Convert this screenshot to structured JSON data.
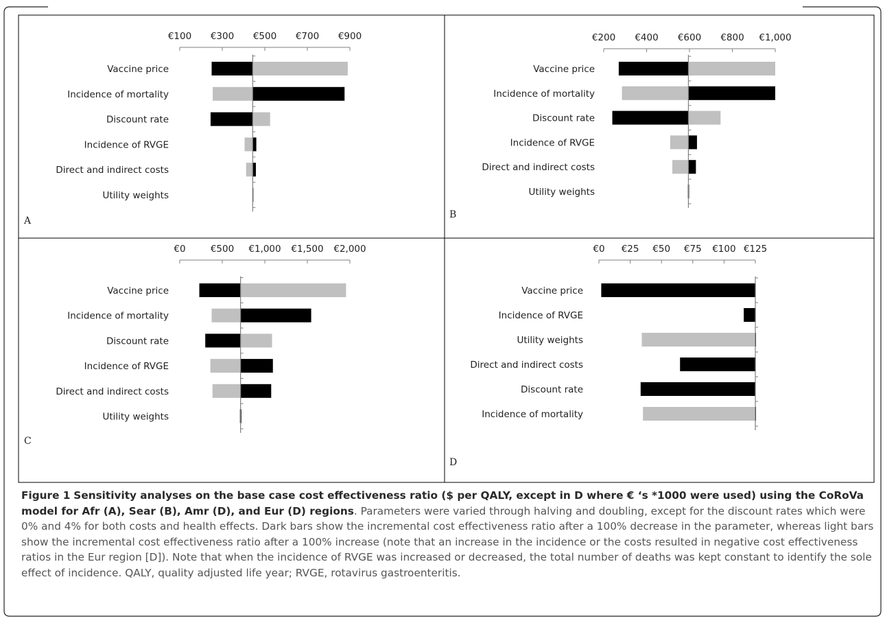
{
  "figure": {
    "caption": {
      "label": "Figure 1",
      "title": "Sensitivity analyses on the base case cost effectiveness ratio ($ per QALY, except in D where € ‘s *1000 were used) using the CoRoVa model for Afr (A), Sear (B), Amr (D), and Eur (D) regions",
      "body": ". Parameters were varied through halving and doubling, except for the discount rates which were 0% and 4% for both costs and health effects. Dark bars show the incremental cost effectiveness ratio after a 100% decrease in the parameter, whereas light bars show the incremental cost effectiveness ratio after a 100% increase (note that an increase in the incidence or the costs resulted in negative cost effectiveness ratios in the Eur region [D]). Note that when the incidence of RVGE was increased or decreased, the total number of deaths was kept constant to identify the sole effect of incidence. QALY, quality adjusted life year; RVGE, rotavirus gastroenteritis."
    },
    "colors": {
      "dark": "#000000",
      "light": "#c0c0c0",
      "axis": "#7f7f7f",
      "border": "#000000"
    }
  },
  "chart_data": [
    {
      "panel": "A",
      "type": "bar",
      "orientation": "horizontal",
      "tick_labels": [
        "€100",
        "€300",
        "€500",
        "€700",
        "€900"
      ],
      "xlim": [
        100,
        900
      ],
      "base": 443,
      "categories": [
        "Vaccine price",
        "Incidence of mortality",
        "Discount rate",
        "Incidence of RVGE",
        "Direct and indirect costs",
        "Utility weights"
      ],
      "series": [
        {
          "key": "dark",
          "values": [
            250,
            875,
            245,
            460,
            458,
            443
          ]
        },
        {
          "key": "light",
          "values": [
            890,
            255,
            525,
            405,
            412,
            441
          ]
        }
      ]
    },
    {
      "panel": "B",
      "type": "bar",
      "orientation": "horizontal",
      "tick_labels": [
        "€200",
        "€400",
        "€600",
        "€800",
        "€1,000"
      ],
      "xlim": [
        200,
        1000
      ],
      "base": 595,
      "categories": [
        "Vaccine price",
        "Incidence of mortality",
        "Discount rate",
        "Incidence of RVGE",
        "Direct and indirect costs",
        "Utility weights"
      ],
      "series": [
        {
          "key": "dark",
          "values": [
            270,
            1000,
            240,
            635,
            630,
            598
          ]
        },
        {
          "key": "light",
          "values": [
            1000,
            285,
            745,
            510,
            520,
            590
          ]
        }
      ]
    },
    {
      "panel": "C",
      "type": "bar",
      "orientation": "horizontal",
      "tick_labels": [
        "€0",
        "€500",
        "€1,000",
        "€1,500",
        "€2,000"
      ],
      "xlim": [
        0,
        2000
      ],
      "base": 715,
      "categories": [
        "Vaccine price",
        "Incidence of mortality",
        "Discount rate",
        "Incidence of RVGE",
        "Direct and indirect costs",
        "Utility weights"
      ],
      "series": [
        {
          "key": "dark",
          "values": [
            230,
            1545,
            300,
            1095,
            1075,
            725
          ]
        },
        {
          "key": "light",
          "values": [
            1955,
            375,
            1085,
            360,
            385,
            700
          ]
        }
      ]
    },
    {
      "panel": "D",
      "type": "bar",
      "orientation": "horizontal",
      "tick_labels": [
        "€0",
        "€25",
        "€50",
        "€75",
        "€100",
        "€125"
      ],
      "xlim": [
        0,
        135
      ],
      "base": 135,
      "categories": [
        "Vaccine price",
        "Incidence of RVGE",
        "Utility weights",
        "Direct and indirect costs",
        "Discount rate",
        "Incidence of mortality"
      ],
      "series": [
        {
          "key": "light",
          "values": [
            135,
            135,
            37,
            135,
            50,
            38
          ]
        },
        {
          "key": "dark",
          "values": [
            2,
            125,
            135,
            70,
            36,
            135
          ]
        }
      ]
    }
  ]
}
